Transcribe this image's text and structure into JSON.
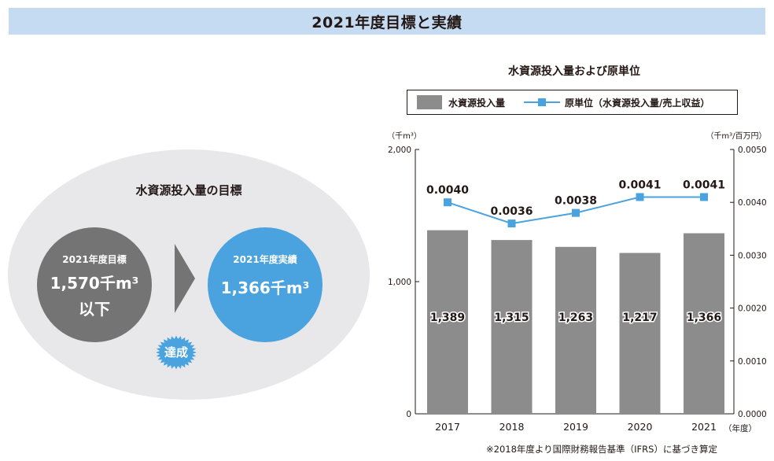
{
  "header": {
    "title": "2021年度目標と実績"
  },
  "goal": {
    "title": "水資源投入量の目標",
    "target_label": "2021年度目標",
    "target_value": "1,570千m³",
    "target_suffix": "以下",
    "result_label": "2021年度実績",
    "result_value": "1,366千m³",
    "badge": "達成"
  },
  "colors": {
    "bar": "#8c8c8c",
    "line": "#4aa3de",
    "header_bg": "#c5dbf1"
  },
  "chart_data": {
    "type": "bar",
    "title": "水資源投入量および原単位",
    "categories": [
      "2017",
      "2018",
      "2019",
      "2020",
      "2021"
    ],
    "x_unit": "（年度）",
    "series": [
      {
        "name": "水資源投入量",
        "type": "bar",
        "axis": "left",
        "values": [
          1389,
          1315,
          1263,
          1217,
          1366
        ],
        "labels": [
          "1,389",
          "1,315",
          "1,263",
          "1,217",
          "1,366"
        ]
      },
      {
        "name": "原単位（水資源投入量/売上収益）",
        "type": "line",
        "axis": "right",
        "values": [
          0.004,
          0.0036,
          0.0038,
          0.0041,
          0.0041
        ],
        "labels": [
          "0.0040",
          "0.0036",
          "0.0038",
          "0.0041",
          "0.0041"
        ]
      }
    ],
    "y_left": {
      "unit": "（千m³）",
      "ylim": [
        0,
        2000
      ],
      "ticks": [
        "0",
        "1,000",
        "2,000"
      ]
    },
    "y_right": {
      "unit": "（千m³/百万円）",
      "ylim": [
        0,
        0.005
      ],
      "ticks": [
        "0.0000",
        "0.0010",
        "0.0020",
        "0.0030",
        "0.0040",
        "0.0050"
      ]
    },
    "grid": false,
    "legend": "top"
  },
  "footnote": "※2018年度より国際財務報告基準（IFRS）に基づき算定"
}
